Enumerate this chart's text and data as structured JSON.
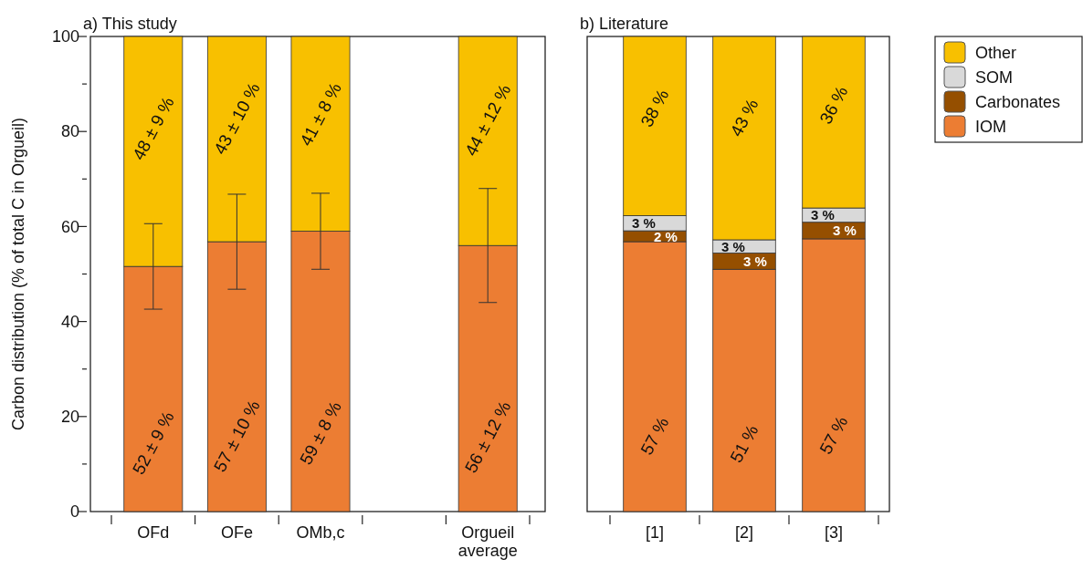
{
  "chart_data": [
    {
      "type": "bar",
      "title": "a) This study",
      "ylabel": "Carbon distribution (% of total C in Orgueil)",
      "stacked": true,
      "categories": [
        "OFd",
        "OFe",
        "OMb,c",
        null,
        "Orgueil average"
      ],
      "ylim": [
        0,
        100
      ],
      "yticks": [
        0,
        {
          "value": 10,
          "label": null
        },
        20,
        {
          "value": 30,
          "label": null
        },
        40,
        {
          "value": 50,
          "label": null
        },
        60,
        {
          "value": 70,
          "label": null
        },
        80,
        {
          "value": 90,
          "label": null
        },
        100
      ],
      "grid": false,
      "legend": false,
      "series": [
        {
          "color": "#ec7d33",
          "values": [
            51.6,
            56.8,
            59.0,
            null,
            56
          ],
          "errors": [
            9,
            10,
            8,
            null,
            12
          ],
          "value_labels": [
            "52 ± 9 %",
            "57 ± 10 %",
            "59 ± 8 %",
            null,
            "56 ± 12 %"
          ]
        },
        {
          "color": "#f8c000",
          "values": [
            48.4,
            43.2,
            41.0,
            null,
            44
          ],
          "value_labels": [
            "48 ± 9 %",
            "43 ± 10 %",
            "41 ± 8 %",
            null,
            "44 ± 12 %"
          ]
        }
      ]
    },
    {
      "type": "bar",
      "title": "b) Literature",
      "stacked": true,
      "categories": [
        "[1]",
        "[2]",
        "[3]"
      ],
      "ylim": [
        0,
        100
      ],
      "tick_labels": "x",
      "grid": false,
      "legend": "right",
      "series": [
        {
          "name": "IOM",
          "color": "#ec7d33",
          "values": [
            56.8,
            51.0,
            57.4
          ],
          "value_labels": [
            "57 %",
            "51 %",
            "57 %"
          ]
        },
        {
          "name": "Carbonates",
          "color": "#954f00",
          "values": [
            2.3,
            3.4,
            3.5
          ],
          "value_labels": [
            "2 %",
            "3 %",
            "3 %"
          ]
        },
        {
          "name": "SOM",
          "color": "#d9d9d9",
          "values": [
            3.2,
            2.8,
            3.0
          ],
          "value_labels": [
            "3 %",
            "3 %",
            "3 %"
          ]
        },
        {
          "name": "Other",
          "color": "#f8c000",
          "values": [
            37.7,
            42.8,
            36.1
          ],
          "value_labels": [
            "38 %",
            "43 %",
            "36 %"
          ]
        }
      ]
    }
  ]
}
